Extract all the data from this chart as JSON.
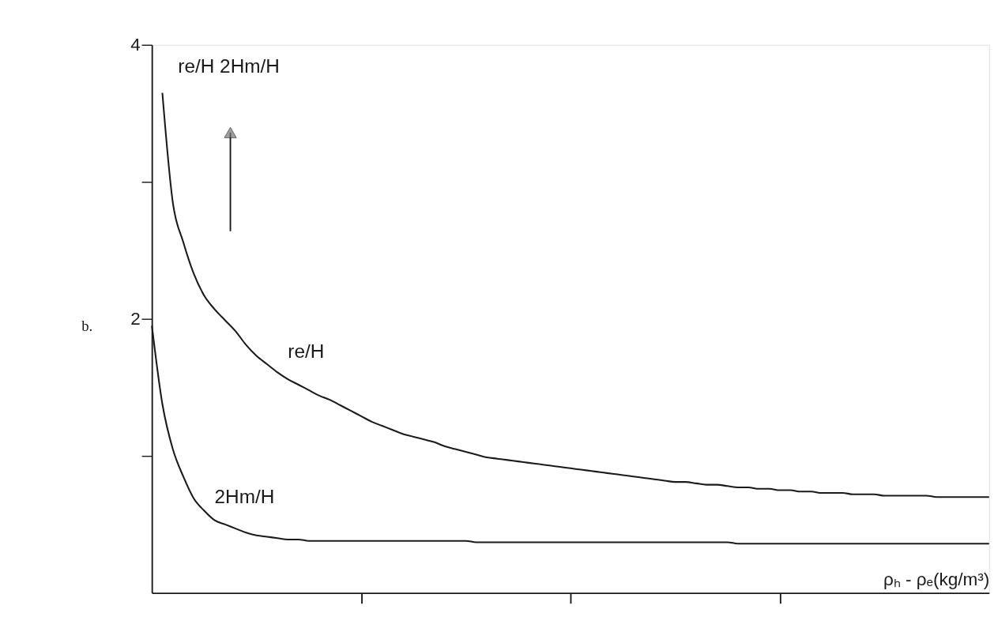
{
  "chart_data": {
    "type": "line",
    "ylabel": "re/H   2Hm/H",
    "xlabel": "ρₕ - ρₑ(kg/m³)",
    "annotations": [
      "b."
    ],
    "categories": [
      null,
      null,
      null,
      null,
      null,
      null,
      null,
      null,
      null,
      null,
      null,
      null,
      null,
      null,
      null,
      null,
      null,
      null,
      null,
      null,
      null,
      null,
      null,
      null,
      null,
      null,
      null,
      null,
      null,
      null,
      null,
      null,
      null,
      null,
      null,
      null,
      null,
      null,
      null,
      null,
      null,
      null,
      null,
      null,
      null,
      null,
      null,
      null,
      null,
      null,
      null,
      null,
      null,
      null,
      null,
      null,
      null,
      null,
      null,
      null,
      null,
      null,
      null,
      null,
      null,
      null,
      null,
      null,
      null,
      null,
      null,
      null,
      null,
      null,
      null,
      null,
      null,
      null,
      null,
      null,
      null
    ],
    "series": [
      {
        "name": "re/H",
        "color": "#1a1a1a",
        "values": [
          null,
          3.65,
          2.85,
          2.56,
          2.33,
          2.17,
          2.07,
          1.99,
          1.91,
          1.81,
          1.73,
          1.67,
          1.61,
          1.56,
          1.52,
          1.48,
          1.44,
          1.41,
          1.37,
          1.33,
          1.29,
          1.25,
          1.22,
          1.19,
          1.16,
          1.14,
          1.12,
          1.1,
          1.07,
          1.05,
          1.03,
          1.01,
          0.99,
          0.98,
          0.97,
          0.96,
          0.95,
          0.94,
          0.93,
          0.92,
          0.91,
          0.9,
          0.89,
          0.88,
          0.87,
          0.86,
          0.85,
          0.84,
          0.83,
          0.82,
          0.81,
          0.81,
          0.8,
          0.79,
          0.79,
          0.78,
          0.77,
          0.77,
          0.76,
          0.76,
          0.75,
          0.75,
          0.74,
          0.74,
          0.73,
          0.73,
          0.73,
          0.72,
          0.72,
          0.72,
          0.71,
          0.71,
          0.71,
          0.71,
          0.71,
          0.7,
          0.7,
          0.7,
          0.7,
          0.7,
          0.7
        ]
      },
      {
        "name": "2Hm/H",
        "color": "#1a1a1a",
        "values": [
          1.95,
          1.38,
          1.05,
          0.85,
          0.69,
          0.6,
          0.53,
          0.5,
          0.47,
          0.44,
          0.42,
          0.41,
          0.4,
          0.39,
          0.39,
          0.38,
          0.38,
          0.38,
          0.38,
          0.38,
          0.38,
          0.38,
          0.38,
          0.38,
          0.38,
          0.38,
          0.38,
          0.38,
          0.38,
          0.38,
          0.38,
          0.37,
          0.37,
          0.37,
          0.37,
          0.37,
          0.37,
          0.37,
          0.37,
          0.37,
          0.37,
          0.37,
          0.37,
          0.37,
          0.37,
          0.37,
          0.37,
          0.37,
          0.37,
          0.37,
          0.37,
          0.37,
          0.37,
          0.37,
          0.37,
          0.37,
          0.36,
          0.36,
          0.36,
          0.36,
          0.36,
          0.36,
          0.36,
          0.36,
          0.36,
          0.36,
          0.36,
          0.36,
          0.36,
          0.36,
          0.36,
          0.36,
          0.36,
          0.36,
          0.36,
          0.36,
          0.36,
          0.36,
          0.36,
          0.36,
          0.36
        ]
      }
    ],
    "ylim": [
      0,
      4
    ],
    "yticks": [
      {
        "value": 1,
        "label": null
      },
      2,
      {
        "value": 3,
        "label": null
      },
      4
    ],
    "grid": false,
    "line_style": "solid",
    "marker": "none"
  }
}
